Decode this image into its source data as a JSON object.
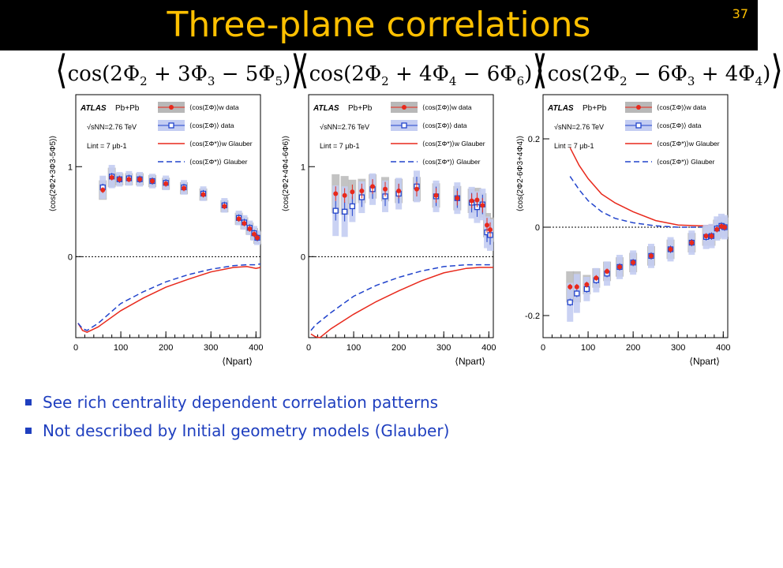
{
  "slide": {
    "title": "Three-plane correlations",
    "page_number": "37",
    "bullets": [
      "See rich centrality dependent correlation patterns",
      "Not described by Initial geometry models (Glauber)"
    ]
  },
  "formulas": [
    {
      "a": "cos(2Φ",
      "s1": "2",
      "b": " + 3Φ",
      "s2": "3",
      "c": " − 5Φ",
      "s3": "5",
      "d": ")"
    },
    {
      "a": "cos(2Φ",
      "s1": "2",
      "b": " + 4Φ",
      "s2": "4",
      "c": " − 6Φ",
      "s3": "6",
      "d": ")"
    },
    {
      "a": "cos(2Φ",
      "s1": "2",
      "b": " − 6Φ",
      "s2": "3",
      "c": " + 4Φ",
      "s3": "4",
      "d": ")"
    }
  ],
  "colors": {
    "title": "#ffc000",
    "bullet": "#1f3fbf",
    "red": "#e8291c",
    "blue": "#2244cc",
    "grey_band": "#b8b8b8",
    "blue_band": "#c4cdf2"
  },
  "legend": {
    "experiment": "ATLAS",
    "system": "Pb+Pb",
    "energy": "√sNN=2.76 TeV",
    "lumi": "Lint = 7 μb-1",
    "entries": [
      {
        "label": "⟨cos(ΣΦ)⟩w data"
      },
      {
        "label": "⟨cos(ΣΦ)⟩ data"
      },
      {
        "label": "⟨cos(ΣΦ*)⟩w Glauber"
      },
      {
        "label": "⟨cos(ΣΦ*)⟩ Glauber"
      }
    ]
  },
  "chart_data": [
    {
      "type": "scatter",
      "xlabel": "⟨Npart⟩",
      "ylabel": "⟨cos(2Φ2+3Φ3-5Φ5)⟩",
      "xlim": [
        0,
        410
      ],
      "ylim": [
        -0.9,
        1.8
      ],
      "x_ticks": [
        0,
        100,
        200,
        300,
        400
      ],
      "y_ticks": [
        0,
        1
      ],
      "series": [
        {
          "name": "⟨cos(ΣΦ)⟩w data",
          "x": [
            60,
            80,
            97,
            118,
            142,
            170,
            200,
            240,
            283,
            330,
            362,
            374,
            386,
            396,
            403
          ],
          "y": [
            0.74,
            0.88,
            0.86,
            0.86,
            0.86,
            0.84,
            0.81,
            0.76,
            0.69,
            0.56,
            0.42,
            0.37,
            0.31,
            0.25,
            0.21
          ]
        },
        {
          "name": "⟨cos(ΣΦ)⟩ data",
          "x": [
            60,
            80,
            97,
            118,
            142,
            170,
            200,
            240,
            283,
            330,
            362,
            374,
            386,
            396,
            403
          ],
          "y": [
            0.77,
            0.89,
            0.86,
            0.87,
            0.86,
            0.84,
            0.82,
            0.77,
            0.7,
            0.57,
            0.43,
            0.38,
            0.32,
            0.26,
            0.21
          ]
        },
        {
          "name": "⟨cos(ΣΦ*)⟩w Glauber",
          "x": [
            5,
            15,
            25,
            50,
            100,
            150,
            200,
            250,
            300,
            350,
            380,
            400,
            410
          ],
          "y": [
            -0.74,
            -0.82,
            -0.84,
            -0.78,
            -0.6,
            -0.46,
            -0.34,
            -0.25,
            -0.17,
            -0.12,
            -0.11,
            -0.13,
            -0.12
          ]
        },
        {
          "name": "⟨cos(ΣΦ*)⟩ Glauber",
          "x": [
            5,
            15,
            25,
            50,
            100,
            150,
            200,
            250,
            300,
            350,
            380,
            400,
            410
          ],
          "y": [
            -0.74,
            -0.8,
            -0.82,
            -0.74,
            -0.52,
            -0.39,
            -0.28,
            -0.2,
            -0.14,
            -0.1,
            -0.09,
            -0.09,
            -0.08
          ]
        }
      ]
    },
    {
      "type": "scatter",
      "xlabel": "⟨Npart⟩",
      "ylabel": "⟨cos(2Φ2+4Φ4-6Φ6)⟩",
      "xlim": [
        0,
        410
      ],
      "ylim": [
        -0.9,
        1.8
      ],
      "x_ticks": [
        0,
        100,
        200,
        300,
        400
      ],
      "y_ticks": [
        0,
        1
      ],
      "series": [
        {
          "name": "⟨cos(ΣΦ)⟩w data",
          "x": [
            60,
            80,
            97,
            118,
            142,
            170,
            200,
            240,
            283,
            330,
            362,
            374,
            386,
            396,
            403
          ],
          "y": [
            0.7,
            0.68,
            0.72,
            0.73,
            0.78,
            0.75,
            0.73,
            0.75,
            0.68,
            0.65,
            0.62,
            0.63,
            0.57,
            0.35,
            0.3
          ]
        },
        {
          "name": "⟨cos(ΣΦ)⟩ data",
          "x": [
            60,
            80,
            97,
            118,
            142,
            170,
            200,
            240,
            283,
            330,
            362,
            374,
            386,
            396,
            403
          ],
          "y": [
            0.51,
            0.5,
            0.56,
            0.66,
            0.75,
            0.67,
            0.7,
            0.78,
            0.67,
            0.65,
            0.6,
            0.55,
            0.58,
            0.27,
            0.24
          ]
        },
        {
          "name": "⟨cos(ΣΦ*)⟩w Glauber",
          "x": [
            5,
            15,
            25,
            50,
            100,
            150,
            200,
            250,
            300,
            350,
            380,
            400,
            410
          ],
          "y": [
            -0.86,
            -0.89,
            -0.9,
            -0.8,
            -0.64,
            -0.5,
            -0.38,
            -0.27,
            -0.18,
            -0.13,
            -0.12,
            -0.12,
            -0.12
          ]
        },
        {
          "name": "⟨cos(ΣΦ*)⟩ Glauber",
          "x": [
            5,
            15,
            25,
            50,
            100,
            150,
            200,
            250,
            300,
            350,
            380,
            400,
            410
          ],
          "y": [
            -0.82,
            -0.76,
            -0.72,
            -0.62,
            -0.44,
            -0.32,
            -0.23,
            -0.16,
            -0.11,
            -0.09,
            -0.09,
            -0.09,
            -0.09
          ]
        }
      ]
    },
    {
      "type": "scatter",
      "xlabel": "⟨Npart⟩",
      "ylabel": "⟨cos(2Φ2-6Φ3+4Φ4)⟩",
      "xlim": [
        0,
        410
      ],
      "ylim": [
        -0.25,
        0.3
      ],
      "x_ticks": [
        0,
        100,
        200,
        300,
        400
      ],
      "y_ticks": [
        -0.2,
        0,
        0.2
      ],
      "series": [
        {
          "name": "⟨cos(ΣΦ)⟩w data",
          "x": [
            60,
            75,
            97,
            118,
            142,
            170,
            200,
            240,
            283,
            330,
            362,
            374,
            386,
            396,
            403
          ],
          "y": [
            -0.135,
            -0.135,
            -0.13,
            -0.115,
            -0.1,
            -0.09,
            -0.08,
            -0.065,
            -0.05,
            -0.035,
            -0.02,
            -0.02,
            -0.005,
            0.002,
            0.0
          ]
        },
        {
          "name": "⟨cos(ΣΦ)⟩ data",
          "x": [
            60,
            75,
            97,
            118,
            142,
            170,
            200,
            240,
            283,
            330,
            362,
            374,
            386,
            396,
            403
          ],
          "y": [
            -0.17,
            -0.15,
            -0.14,
            -0.12,
            -0.105,
            -0.09,
            -0.08,
            -0.065,
            -0.05,
            -0.035,
            -0.022,
            -0.02,
            -0.003,
            0.003,
            0.0
          ]
        },
        {
          "name": "⟨cos(ΣΦ*)⟩w Glauber",
          "x": [
            60,
            80,
            100,
            130,
            160,
            200,
            250,
            300,
            350,
            380,
            395,
            405
          ],
          "y": [
            0.18,
            0.14,
            0.11,
            0.075,
            0.055,
            0.035,
            0.015,
            0.005,
            0.003,
            0.005,
            0.008,
            0.006
          ]
        },
        {
          "name": "⟨cos(ΣΦ*)⟩ Glauber",
          "x": [
            60,
            80,
            100,
            130,
            160,
            200,
            250,
            300,
            350,
            380,
            395,
            405
          ],
          "y": [
            0.115,
            0.085,
            0.06,
            0.035,
            0.02,
            0.01,
            0.003,
            0.0,
            0.0,
            0.0,
            0.002,
            0.0
          ]
        }
      ]
    }
  ]
}
